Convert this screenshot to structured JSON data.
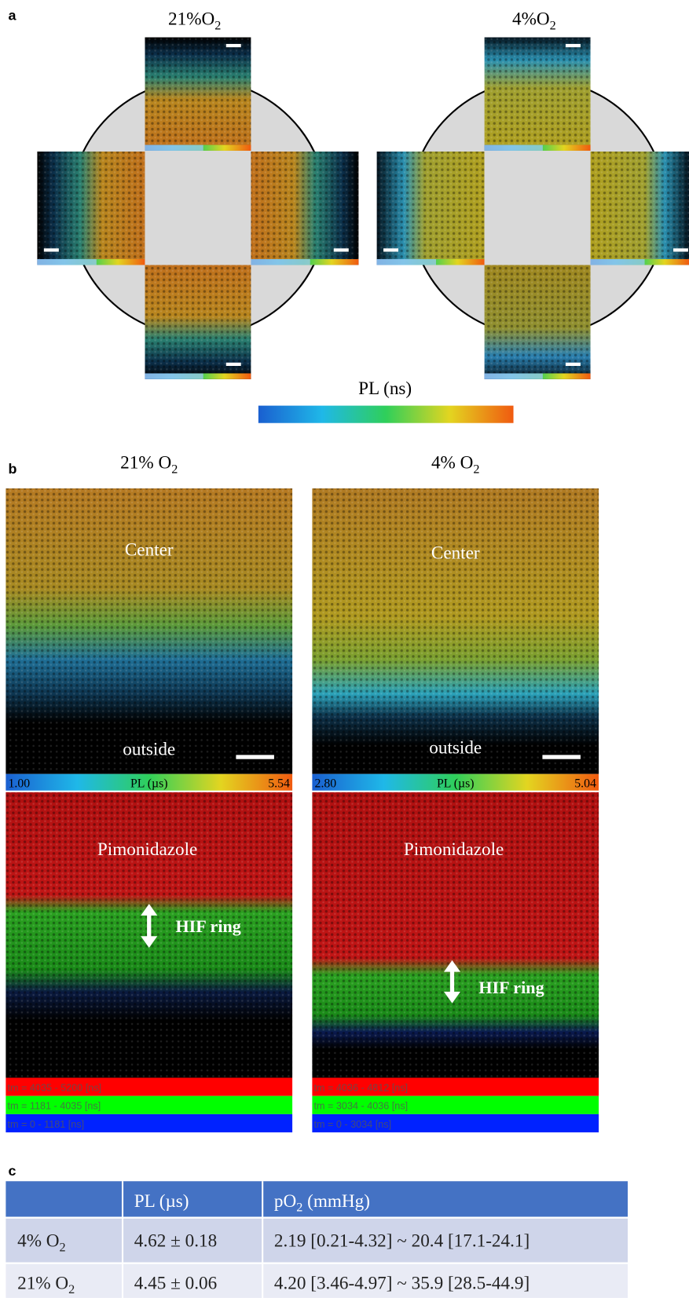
{
  "panel_a": {
    "label": "a",
    "titles": [
      {
        "main": "21%O",
        "sub": "2"
      },
      {
        "main": "4%O",
        "sub": "2"
      }
    ],
    "colorbar_label": "PL (ns)"
  },
  "panel_b": {
    "label": "b",
    "columns": [
      {
        "title": {
          "main": "21% O",
          "sub": "2"
        },
        "center": "Center",
        "outside": "outside",
        "pl_min": "1.00",
        "pl_label": "PL (µs)",
        "pl_max": "5.54",
        "pimo": "Pimonidazole",
        "hif": "HIF ring",
        "bands": [
          "tm = 4035 - 5200 [ns]",
          "tm = 1181 - 4035 [ns]",
          "tm = 0 - 1181 [ns]"
        ]
      },
      {
        "title": {
          "main": "4% O",
          "sub": "2"
        },
        "center": "Center",
        "outside": "outside",
        "pl_min": "2.80",
        "pl_label": "PL (µs)",
        "pl_max": "5.04",
        "pimo": "Pimonidazole",
        "hif": "HIF ring",
        "bands": [
          "tm = 4036 - 4812 [ns]",
          "tm = 3034 - 4036 [ns]",
          "tm = 0 - 3034 [ns]"
        ]
      }
    ]
  },
  "panel_c": {
    "label": "c",
    "header": [
      "PL (µs)",
      {
        "main": "pO",
        "sub": "2",
        "rest": " (mmHg)"
      }
    ],
    "rows": [
      {
        "label": {
          "main": "4% O",
          "sub": "2"
        },
        "pl": "4.62 ± 0.18",
        "po2": "2.19 [0.21-4.32] ~ 20.4 [17.1-24.1]"
      },
      {
        "label": {
          "main": "21% O",
          "sub": "2"
        },
        "pl": "4.45 ± 0.06",
        "po2": "4.20 [3.46-4.97] ~ 35.9 [28.5-44.9]"
      }
    ]
  }
}
